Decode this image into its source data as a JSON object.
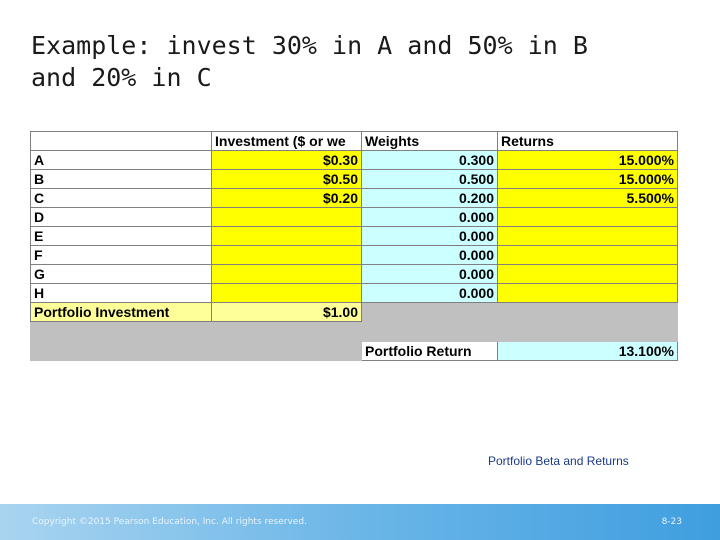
{
  "slide": {
    "title_line1": "Example: invest 30% in A and 50% in B",
    "title_line2": "and 20% in C",
    "caption": "Portfolio Beta and Returns",
    "copyright": "Copyright ©2015 Pearson Education, Inc. All rights reserved.",
    "page_number": "8-23"
  },
  "table": {
    "headers": [
      "",
      "Investment ($ or we",
      "Weights",
      "Returns"
    ],
    "rows": [
      {
        "label": "A",
        "investment": "$0.30",
        "weight": "0.300",
        "return": "15.000%"
      },
      {
        "label": "B",
        "investment": "$0.50",
        "weight": "0.500",
        "return": "15.000%"
      },
      {
        "label": "C",
        "investment": "$0.20",
        "weight": "0.200",
        "return": "5.500%"
      },
      {
        "label": "D",
        "investment": "",
        "weight": "0.000",
        "return": ""
      },
      {
        "label": "E",
        "investment": "",
        "weight": "0.000",
        "return": ""
      },
      {
        "label": "F",
        "investment": "",
        "weight": "0.000",
        "return": ""
      },
      {
        "label": "G",
        "investment": "",
        "weight": "0.000",
        "return": ""
      },
      {
        "label": "H",
        "investment": "",
        "weight": "0.000",
        "return": ""
      }
    ],
    "total_label": "Portfolio Investment",
    "total_value": "$1.00",
    "portfolio_return_label": "Portfolio Return",
    "portfolio_return_value": "13.100%"
  },
  "colors": {
    "input_yellow": "#ffff00",
    "weights_cyan": "#ccffff",
    "total_pale_yellow": "#ffff99",
    "gray_area": "#c0c0c0",
    "footer_blue": "#6bb6e8"
  }
}
